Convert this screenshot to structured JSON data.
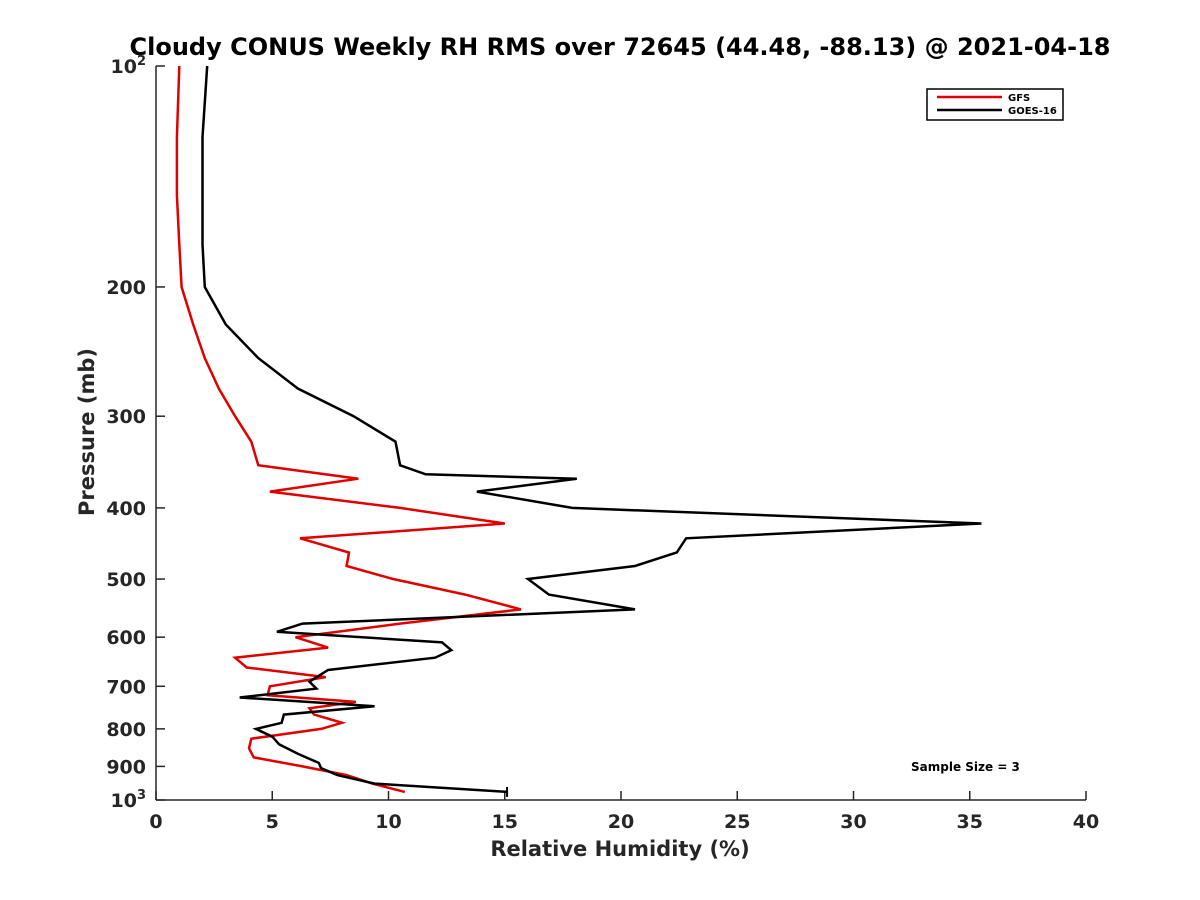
{
  "chart_data": {
    "type": "line",
    "title": "Cloudy CONUS Weekly RH RMS over 72645 (44.48, -88.13) @ 2021-04-18",
    "xlabel": "Relative Humidity (%)",
    "ylabel": "Pressure (mb)",
    "xlim": [
      0,
      40
    ],
    "ylim": [
      100,
      1000
    ],
    "y_scale": "log",
    "y_reversed": true,
    "grid": false,
    "legend_position": "top-right",
    "x_ticks": [
      "0",
      "5",
      "10",
      "15",
      "20",
      "25",
      "30",
      "35",
      "40"
    ],
    "y_ticks": [
      {
        "value": 100,
        "base": "10",
        "exp": "2"
      },
      {
        "value": 200,
        "label": "200"
      },
      {
        "value": 300,
        "label": "300"
      },
      {
        "value": 400,
        "label": "400"
      },
      {
        "value": 500,
        "label": "500"
      },
      {
        "value": 600,
        "label": "600"
      },
      {
        "value": 700,
        "label": "700"
      },
      {
        "value": 800,
        "label": "800"
      },
      {
        "value": 900,
        "label": "900"
      },
      {
        "value": 1000,
        "base": "10",
        "exp": "3"
      }
    ],
    "annotation": "Sample Size = 3",
    "series": [
      {
        "name": "GFS",
        "color": "#e00000",
        "points": [
          [
            1.0,
            100
          ],
          [
            0.9,
            125
          ],
          [
            0.9,
            150
          ],
          [
            1.0,
            175
          ],
          [
            1.1,
            200
          ],
          [
            1.6,
            225
          ],
          [
            2.1,
            250
          ],
          [
            2.7,
            275
          ],
          [
            3.4,
            300
          ],
          [
            4.1,
            325
          ],
          [
            4.4,
            350
          ],
          [
            8.7,
            365
          ],
          [
            4.9,
            380
          ],
          [
            10.5,
            400
          ],
          [
            15.0,
            420
          ],
          [
            6.2,
            440
          ],
          [
            8.3,
            460
          ],
          [
            8.2,
            480
          ],
          [
            10.2,
            500
          ],
          [
            13.3,
            525
          ],
          [
            15.7,
            550
          ],
          [
            10.5,
            575
          ],
          [
            6.0,
            600
          ],
          [
            7.4,
            620
          ],
          [
            3.4,
            640
          ],
          [
            3.9,
            660
          ],
          [
            7.3,
            680
          ],
          [
            4.9,
            700
          ],
          [
            4.8,
            720
          ],
          [
            8.6,
            735
          ],
          [
            6.6,
            750
          ],
          [
            6.8,
            765
          ],
          [
            8.0,
            785
          ],
          [
            7.1,
            800
          ],
          [
            4.1,
            825
          ],
          [
            4.0,
            850
          ],
          [
            4.2,
            875
          ],
          [
            6.3,
            900
          ],
          [
            8.2,
            925
          ],
          [
            9.3,
            950
          ],
          [
            10.7,
            975
          ]
        ]
      },
      {
        "name": "GOES-16",
        "color": "#000000",
        "points": [
          [
            2.2,
            100
          ],
          [
            2.0,
            125
          ],
          [
            2.0,
            150
          ],
          [
            2.0,
            175
          ],
          [
            2.1,
            200
          ],
          [
            3.0,
            225
          ],
          [
            4.4,
            250
          ],
          [
            6.1,
            275
          ],
          [
            8.5,
            300
          ],
          [
            10.3,
            325
          ],
          [
            10.5,
            350
          ],
          [
            11.6,
            360
          ],
          [
            18.1,
            365
          ],
          [
            13.8,
            380
          ],
          [
            17.9,
            400
          ],
          [
            35.5,
            420
          ],
          [
            22.8,
            440
          ],
          [
            22.4,
            460
          ],
          [
            20.6,
            480
          ],
          [
            16.0,
            500
          ],
          [
            16.9,
            525
          ],
          [
            20.6,
            550
          ],
          [
            6.3,
            575
          ],
          [
            5.2,
            590
          ],
          [
            12.3,
            610
          ],
          [
            12.7,
            625
          ],
          [
            12.0,
            640
          ],
          [
            7.4,
            665
          ],
          [
            6.6,
            690
          ],
          [
            6.9,
            705
          ],
          [
            3.6,
            725
          ],
          [
            9.4,
            745
          ],
          [
            5.5,
            765
          ],
          [
            5.4,
            785
          ],
          [
            4.3,
            800
          ],
          [
            5.0,
            820
          ],
          [
            5.3,
            840
          ],
          [
            6.1,
            865
          ],
          [
            7.0,
            890
          ],
          [
            7.1,
            905
          ],
          [
            7.8,
            925
          ],
          [
            9.4,
            950
          ],
          [
            15.1,
            975
          ]
        ]
      }
    ]
  }
}
